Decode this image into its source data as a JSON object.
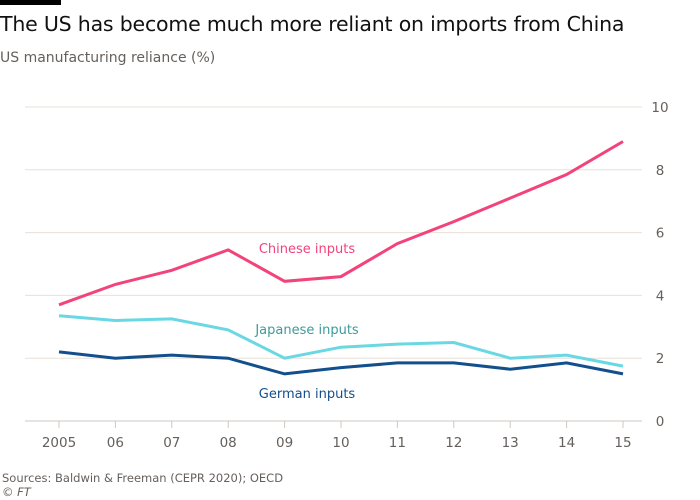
{
  "title": "The US has become much more reliant on imports from China",
  "subtitle": "US manufacturing reliance (%)",
  "source": "Sources: Baldwin & Freeman (CEPR 2020); OECD",
  "credit": "© FT",
  "chart_data": {
    "type": "line",
    "title": "The US has become much more reliant on imports from China",
    "subtitle": "US manufacturing reliance (%)",
    "xlabel": "",
    "ylabel": "US manufacturing reliance (%)",
    "categories": [
      "2005",
      "06",
      "07",
      "08",
      "09",
      "10",
      "11",
      "12",
      "13",
      "14",
      "15"
    ],
    "ylim": [
      0,
      10
    ],
    "yticks": [
      0,
      2,
      4,
      6,
      8,
      10
    ],
    "grid": true,
    "y_axis_side": "right",
    "legend": "inline-labels",
    "series": [
      {
        "name": "Chinese inputs",
        "color": "#f2437b",
        "label_color": "#f2437b",
        "values": [
          3.7,
          4.35,
          4.8,
          5.45,
          4.45,
          4.6,
          5.65,
          6.35,
          7.1,
          7.85,
          8.9
        ]
      },
      {
        "name": "Japanese inputs",
        "color": "#6ad8e3",
        "label_color": "#3e9a9a",
        "values": [
          3.35,
          3.2,
          3.25,
          2.9,
          2.0,
          2.35,
          2.45,
          2.5,
          2.0,
          2.1,
          1.75
        ]
      },
      {
        "name": "German inputs",
        "color": "#134f8c",
        "label_color": "#134f8c",
        "values": [
          2.2,
          2.0,
          2.1,
          2.0,
          1.5,
          1.7,
          1.85,
          1.85,
          1.65,
          1.85,
          1.5
        ]
      }
    ]
  }
}
